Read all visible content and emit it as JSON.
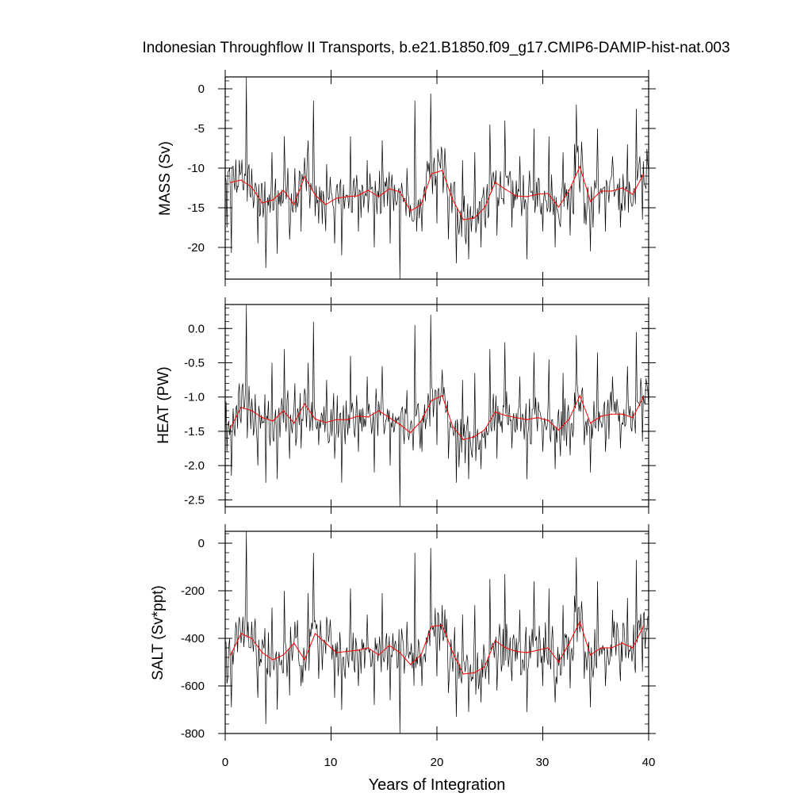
{
  "chart_data": {
    "type": "line",
    "title": "Indonesian Throughflow II Transports, b.e21.B1850.f09_g17.CMIP6-DAMIP-hist-nat.003",
    "xlabel": "Years of Integration",
    "xlim": [
      0,
      40
    ],
    "xticks": [
      "0",
      "10",
      "20",
      "30",
      "40"
    ],
    "colors": {
      "monthly": "#000000",
      "annual": "#ff0000"
    },
    "panels": [
      {
        "ylabel": "MASS (Sv)",
        "ylim": [
          -24,
          1.5
        ],
        "yticks": [
          "0",
          "-5",
          "-10",
          "-15",
          "-20"
        ],
        "annual_mean": [
          -11.8,
          -11.5,
          -12.4,
          -14.4,
          -14.0,
          -12.8,
          -14.6,
          -11.1,
          -13.4,
          -14.6,
          -13.8,
          -13.6,
          -13.5,
          -12.8,
          -13.6,
          -12.6,
          -13.0,
          -15.4,
          -14.6,
          -10.7,
          -10.3,
          -14.0,
          -16.5,
          -16.3,
          -15.0,
          -11.8,
          -12.7,
          -13.5,
          -13.6,
          -13.3,
          -13.2,
          -14.9,
          -12.8,
          -9.8,
          -14.2,
          -12.9,
          -12.9,
          -12.5,
          -13.3,
          -10.8
        ],
        "peaks": [
          [
            0.2,
            -17.5
          ],
          [
            0.6,
            -20.7
          ],
          [
            1.3,
            -9.0
          ],
          [
            2.0,
            1.5
          ],
          [
            2.6,
            -13.0
          ],
          [
            3.1,
            -19.5
          ],
          [
            3.8,
            -22.6
          ],
          [
            4.4,
            -8.0
          ],
          [
            4.9,
            -20.8
          ],
          [
            5.6,
            -6.0
          ],
          [
            6.1,
            -19.0
          ],
          [
            6.6,
            -10.0
          ],
          [
            7.2,
            -18.0
          ],
          [
            7.8,
            -6.5
          ],
          [
            8.3,
            -1.5
          ],
          [
            8.8,
            -17.0
          ],
          [
            9.6,
            -9.5
          ],
          [
            10.3,
            -19.5
          ],
          [
            11.0,
            -21.0
          ],
          [
            11.8,
            -6.0
          ],
          [
            12.6,
            -18.0
          ],
          [
            13.4,
            -9.0
          ],
          [
            14.1,
            -20.0
          ],
          [
            14.8,
            -6.5
          ],
          [
            15.6,
            -19.5
          ],
          [
            16.5,
            -24.0
          ],
          [
            17.2,
            -10.0
          ],
          [
            17.9,
            -1.5
          ],
          [
            18.6,
            -18.0
          ],
          [
            19.4,
            -0.6
          ],
          [
            20.0,
            -17.0
          ],
          [
            20.5,
            -8.0
          ],
          [
            21.1,
            -19.0
          ],
          [
            21.8,
            -22.0
          ],
          [
            22.4,
            -9.0
          ],
          [
            23.0,
            -21.5
          ],
          [
            23.6,
            -8.0
          ],
          [
            24.2,
            -20.0
          ],
          [
            25.0,
            -4.5
          ],
          [
            25.7,
            -18.5
          ],
          [
            26.4,
            -4.0
          ],
          [
            27.1,
            -17.5
          ],
          [
            27.8,
            -8.5
          ],
          [
            28.5,
            -21.5
          ],
          [
            29.2,
            -5.0
          ],
          [
            30.0,
            -18.0
          ],
          [
            30.6,
            -6.0
          ],
          [
            31.2,
            -20.0
          ],
          [
            31.9,
            -8.0
          ],
          [
            32.6,
            -18.5
          ],
          [
            33.2,
            -2.0
          ],
          [
            33.9,
            -17.0
          ],
          [
            34.5,
            -20.5
          ],
          [
            35.2,
            -5.0
          ],
          [
            35.9,
            -18.0
          ],
          [
            36.6,
            -8.5
          ],
          [
            37.3,
            -17.5
          ],
          [
            38.0,
            -7.0
          ],
          [
            38.8,
            -2.5
          ],
          [
            39.4,
            -16.5
          ],
          [
            39.9,
            -9.5
          ]
        ]
      },
      {
        "ylabel": "HEAT (PW)",
        "ylim": [
          -2.6,
          0.35
        ],
        "yticks": [
          "0.0",
          "-0.5",
          "-1.0",
          "-1.5",
          "-2.0",
          "-2.5"
        ],
        "annual_mean": [
          -1.45,
          -1.15,
          -1.2,
          -1.3,
          -1.35,
          -1.2,
          -1.38,
          -1.1,
          -1.32,
          -1.37,
          -1.33,
          -1.33,
          -1.28,
          -1.29,
          -1.2,
          -1.3,
          -1.4,
          -1.52,
          -1.35,
          -1.05,
          -0.98,
          -1.43,
          -1.62,
          -1.58,
          -1.48,
          -1.22,
          -1.27,
          -1.3,
          -1.33,
          -1.3,
          -1.34,
          -1.48,
          -1.32,
          -0.98,
          -1.38,
          -1.28,
          -1.25,
          -1.25,
          -1.3,
          -1.0
        ],
        "peaks": [
          [
            0.2,
            -1.8
          ],
          [
            0.6,
            -2.15
          ],
          [
            1.3,
            -0.8
          ],
          [
            2.0,
            0.35
          ],
          [
            2.6,
            -1.2
          ],
          [
            3.1,
            -2.0
          ],
          [
            3.8,
            -2.25
          ],
          [
            4.4,
            -0.5
          ],
          [
            4.9,
            -2.2
          ],
          [
            5.6,
            -0.3
          ],
          [
            6.1,
            -1.9
          ],
          [
            6.6,
            -0.8
          ],
          [
            7.2,
            -1.75
          ],
          [
            7.8,
            -0.5
          ],
          [
            8.3,
            0.1
          ],
          [
            8.8,
            -1.7
          ],
          [
            9.6,
            -0.75
          ],
          [
            10.3,
            -1.9
          ],
          [
            11.0,
            -2.25
          ],
          [
            11.8,
            -0.4
          ],
          [
            12.6,
            -1.8
          ],
          [
            13.4,
            -0.7
          ],
          [
            14.1,
            -2.1
          ],
          [
            14.8,
            -0.55
          ],
          [
            15.6,
            -2.0
          ],
          [
            16.5,
            -2.6
          ],
          [
            17.2,
            -0.9
          ],
          [
            17.9,
            0.05
          ],
          [
            18.6,
            -1.8
          ],
          [
            19.4,
            0.2
          ],
          [
            20.0,
            -1.7
          ],
          [
            20.5,
            -0.6
          ],
          [
            21.1,
            -1.9
          ],
          [
            21.8,
            -2.25
          ],
          [
            22.4,
            -0.75
          ],
          [
            23.0,
            -2.2
          ],
          [
            23.6,
            -0.65
          ],
          [
            24.2,
            -2.05
          ],
          [
            25.0,
            -0.3
          ],
          [
            25.7,
            -1.9
          ],
          [
            26.4,
            -0.2
          ],
          [
            27.1,
            -1.75
          ],
          [
            27.8,
            -0.7
          ],
          [
            28.5,
            -2.2
          ],
          [
            29.2,
            -0.35
          ],
          [
            30.0,
            -1.8
          ],
          [
            30.6,
            -0.45
          ],
          [
            31.2,
            -2.05
          ],
          [
            31.9,
            -0.65
          ],
          [
            32.6,
            -1.85
          ],
          [
            33.2,
            -0.1
          ],
          [
            33.9,
            -1.7
          ],
          [
            34.5,
            -2.1
          ],
          [
            35.2,
            -0.35
          ],
          [
            35.9,
            -1.8
          ],
          [
            36.6,
            -0.7
          ],
          [
            37.3,
            -1.75
          ],
          [
            38.0,
            -0.55
          ],
          [
            38.8,
            -0.05
          ],
          [
            39.4,
            -1.65
          ],
          [
            39.9,
            -0.9
          ]
        ]
      },
      {
        "ylabel": "SALT (Sv*ppt)",
        "ylim": [
          -800,
          50
        ],
        "yticks": [
          "0",
          "-200",
          "-400",
          "-600",
          "-800"
        ],
        "annual_mean": [
          -470,
          -380,
          -400,
          -460,
          -490,
          -470,
          -420,
          -490,
          -380,
          -420,
          -460,
          -455,
          -450,
          -440,
          -470,
          -430,
          -460,
          -510,
          -470,
          -350,
          -345,
          -460,
          -550,
          -545,
          -520,
          -410,
          -440,
          -455,
          -460,
          -450,
          -440,
          -500,
          -420,
          -330,
          -470,
          -440,
          -440,
          -420,
          -440,
          -350
        ],
        "peaks": [
          [
            0.2,
            -590
          ],
          [
            0.6,
            -690
          ],
          [
            1.3,
            -310
          ],
          [
            2.0,
            50
          ],
          [
            2.6,
            -420
          ],
          [
            3.1,
            -650
          ],
          [
            3.8,
            -760
          ],
          [
            4.4,
            -270
          ],
          [
            4.9,
            -700
          ],
          [
            5.6,
            -200
          ],
          [
            6.1,
            -640
          ],
          [
            6.6,
            -330
          ],
          [
            7.2,
            -600
          ],
          [
            7.8,
            -210
          ],
          [
            8.3,
            -40
          ],
          [
            8.8,
            -570
          ],
          [
            9.6,
            -310
          ],
          [
            10.3,
            -650
          ],
          [
            11.0,
            -700
          ],
          [
            11.8,
            -190
          ],
          [
            12.6,
            -600
          ],
          [
            13.4,
            -300
          ],
          [
            14.1,
            -680
          ],
          [
            14.8,
            -210
          ],
          [
            15.6,
            -660
          ],
          [
            16.5,
            -800
          ],
          [
            17.2,
            -330
          ],
          [
            17.9,
            -40
          ],
          [
            18.6,
            -600
          ],
          [
            19.4,
            -20
          ],
          [
            20.0,
            -560
          ],
          [
            20.5,
            -260
          ],
          [
            21.1,
            -630
          ],
          [
            21.8,
            -730
          ],
          [
            22.4,
            -300
          ],
          [
            23.0,
            -710
          ],
          [
            23.6,
            -260
          ],
          [
            24.2,
            -670
          ],
          [
            25.0,
            -150
          ],
          [
            25.7,
            -620
          ],
          [
            26.4,
            -130
          ],
          [
            27.1,
            -580
          ],
          [
            27.8,
            -280
          ],
          [
            28.5,
            -710
          ],
          [
            29.2,
            -160
          ],
          [
            30.0,
            -600
          ],
          [
            30.6,
            -190
          ],
          [
            31.2,
            -670
          ],
          [
            31.9,
            -260
          ],
          [
            32.6,
            -610
          ],
          [
            33.2,
            -60
          ],
          [
            33.9,
            -570
          ],
          [
            34.5,
            -690
          ],
          [
            35.2,
            -160
          ],
          [
            35.9,
            -600
          ],
          [
            36.6,
            -280
          ],
          [
            37.3,
            -580
          ],
          [
            38.0,
            -230
          ],
          [
            38.8,
            -70
          ],
          [
            39.4,
            -540
          ],
          [
            39.9,
            -310
          ]
        ]
      }
    ]
  }
}
